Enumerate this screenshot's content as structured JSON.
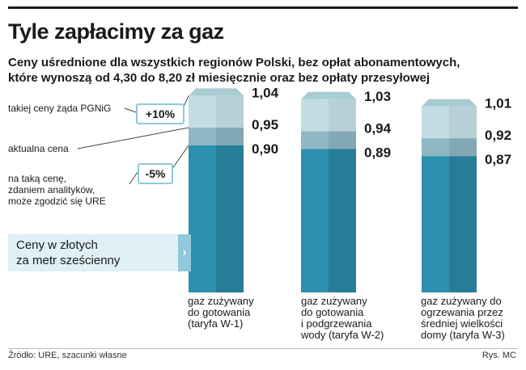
{
  "header": {
    "title": "Tyle zapłacimy za gaz",
    "subtitle_line1": "Ceny uśrednione dla wszystkich regionów Polski, bez opłat abonamentowych,",
    "subtitle_line2": "które wynoszą od 4,30 do 8,20 zł miesięcznie oraz bez opłaty przesyłowej"
  },
  "legend": {
    "pgnig_label": "takiej ceny żąda PGNiG",
    "pgnig_badge": "+10%",
    "current_label": "aktualna cena",
    "ure_line1": "na taką cenę,",
    "ure_line2": "zdaniem analityków,",
    "ure_line3": "może zgodzić się URE",
    "ure_badge": "-5%",
    "unit_line1": "Ceny w złotych",
    "unit_line2": "za metr sześcienny",
    "unit_arrow": "›"
  },
  "footer": {
    "source": "Źródło: URE, szacunki własne",
    "credit": "Rys. MC"
  },
  "colors": {
    "pgnig": "#c3dde3",
    "current": "#8fb8c4",
    "ure": "#2d8fae",
    "bar_top_face": "#a9cbd4",
    "accent": "#8fc9db"
  },
  "chart_data": {
    "type": "bar",
    "categories": [
      "gaz zużywany do gotowania (taryfa W-1)",
      "gaz zużywany do gotowania i podgrzewania wody (taryfa W-2)",
      "gaz zużywany do ogrzewania przez średniej wielkości domy (taryfa W-3)"
    ],
    "category_lines": [
      [
        "gaz zużywany",
        "do gotowania",
        "(taryfa W-1)"
      ],
      [
        "gaz zużywany",
        "do gotowania",
        "i podgrzewania",
        "wody (taryfa W-2)"
      ],
      [
        "gaz zużywany do",
        "ogrzewania przez",
        "średniej wielkości",
        "domy (taryfa W-3)"
      ]
    ],
    "series": [
      {
        "name": "na taką cenę, zdaniem analityków, może zgodzić się URE",
        "values": [
          0.9,
          0.89,
          0.87
        ],
        "labels": [
          "0,90",
          "0,89",
          "0,87"
        ]
      },
      {
        "name": "aktualna cena",
        "values": [
          0.95,
          0.94,
          0.92
        ],
        "labels": [
          "0,95",
          "0,94",
          "0,92"
        ]
      },
      {
        "name": "takiej ceny żąda PGNiG",
        "values": [
          1.04,
          1.03,
          1.01
        ],
        "labels": [
          "1,04",
          "1,03",
          "1,01"
        ]
      }
    ],
    "ylabel": "Ceny w złotych za metr sześcienny",
    "grid": false
  }
}
